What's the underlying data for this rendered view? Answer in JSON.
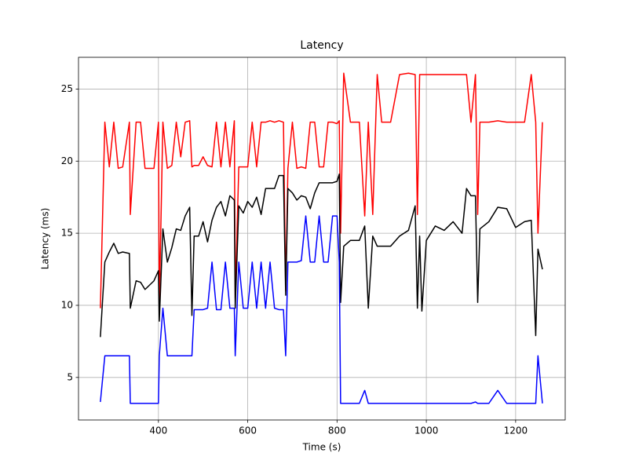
{
  "chart_data": {
    "type": "line",
    "title": "Latency",
    "x_label": "Time (s)",
    "y_label": "Latency (ms)",
    "x": [
      270,
      280,
      290,
      300,
      310,
      320,
      335,
      337,
      350,
      360,
      370,
      390,
      400,
      402,
      410,
      420,
      430,
      440,
      450,
      460,
      470,
      475,
      480,
      490,
      500,
      510,
      520,
      530,
      540,
      550,
      560,
      570,
      572,
      580,
      590,
      600,
      610,
      620,
      630,
      640,
      650,
      660,
      670,
      680,
      685,
      690,
      700,
      710,
      720,
      730,
      740,
      750,
      760,
      770,
      780,
      790,
      800,
      805,
      808,
      815,
      830,
      850,
      862,
      870,
      880,
      890,
      900,
      920,
      940,
      960,
      975,
      980,
      985,
      990,
      1000,
      1020,
      1040,
      1060,
      1080,
      1090,
      1100,
      1110,
      1115,
      1120,
      1140,
      1160,
      1180,
      1200,
      1220,
      1235,
      1245,
      1250,
      1260
    ],
    "series": [
      {
        "color": "#ff0000",
        "values": [
          9.8,
          22.7,
          19.6,
          22.7,
          19.5,
          19.6,
          22.7,
          16.3,
          22.7,
          22.7,
          19.5,
          19.5,
          22.7,
          10.0,
          22.7,
          19.5,
          19.7,
          22.7,
          20.3,
          22.7,
          22.8,
          19.6,
          19.7,
          19.7,
          20.3,
          19.7,
          19.6,
          22.7,
          19.6,
          22.7,
          19.6,
          22.8,
          10.5,
          19.6,
          19.6,
          19.6,
          22.7,
          19.6,
          22.7,
          22.7,
          22.8,
          22.7,
          22.8,
          22.7,
          11.0,
          19.5,
          22.7,
          19.5,
          19.6,
          19.5,
          22.7,
          22.7,
          19.6,
          19.6,
          22.7,
          22.7,
          22.6,
          22.8,
          15.0,
          26.1,
          22.7,
          22.7,
          16.2,
          22.7,
          16.3,
          26.0,
          22.7,
          22.7,
          26.0,
          26.1,
          26.0,
          16.3,
          26.0,
          26.0,
          26.0,
          26.0,
          26.0,
          26.0,
          26.0,
          26.0,
          22.7,
          26.0,
          16.3,
          22.7,
          22.7,
          22.8,
          22.7,
          22.7,
          22.7,
          26.0,
          22.7,
          15.0,
          22.7
        ]
      },
      {
        "color": "#000000",
        "values": [
          7.8,
          13.0,
          13.7,
          14.3,
          13.6,
          13.7,
          13.6,
          9.8,
          11.7,
          11.6,
          11.1,
          11.7,
          12.4,
          8.9,
          15.3,
          13.0,
          14.0,
          15.3,
          15.2,
          16.2,
          16.8,
          9.3,
          14.8,
          14.8,
          15.8,
          14.4,
          15.9,
          16.8,
          17.2,
          16.2,
          17.6,
          17.3,
          9.8,
          16.9,
          16.4,
          17.2,
          16.8,
          17.5,
          16.3,
          18.1,
          18.1,
          18.1,
          19.0,
          19.0,
          10.7,
          18.1,
          17.8,
          17.3,
          17.6,
          17.5,
          16.7,
          17.8,
          18.5,
          18.5,
          18.5,
          18.5,
          18.6,
          19.1,
          10.2,
          14.1,
          14.5,
          14.5,
          15.5,
          9.8,
          14.8,
          14.1,
          14.1,
          14.1,
          14.8,
          15.2,
          16.9,
          9.8,
          14.8,
          9.6,
          14.5,
          15.5,
          15.2,
          15.8,
          15.0,
          18.1,
          17.6,
          17.6,
          10.2,
          15.3,
          15.8,
          16.8,
          16.7,
          15.4,
          15.8,
          15.9,
          7.9,
          13.9,
          12.5
        ]
      },
      {
        "color": "#0000ff",
        "values": [
          3.3,
          6.5,
          6.5,
          6.5,
          6.5,
          6.5,
          6.5,
          3.2,
          3.2,
          3.2,
          3.2,
          3.2,
          3.2,
          6.5,
          9.8,
          6.5,
          6.5,
          6.5,
          6.5,
          6.5,
          6.5,
          6.5,
          9.7,
          9.7,
          9.7,
          9.8,
          13.0,
          9.7,
          9.7,
          13.0,
          9.8,
          9.8,
          6.5,
          13.0,
          9.8,
          9.8,
          13.0,
          9.8,
          13.0,
          9.8,
          13.0,
          9.8,
          9.7,
          9.7,
          6.5,
          13.0,
          13.0,
          13.0,
          13.1,
          16.2,
          13.0,
          13.0,
          16.2,
          13.0,
          13.0,
          16.2,
          16.2,
          13.0,
          3.2,
          3.2,
          3.2,
          3.2,
          4.1,
          3.2,
          3.2,
          3.2,
          3.2,
          3.2,
          3.2,
          3.2,
          3.2,
          3.2,
          3.2,
          3.2,
          3.2,
          3.2,
          3.2,
          3.2,
          3.2,
          3.2,
          3.2,
          3.3,
          3.2,
          3.2,
          3.2,
          4.1,
          3.2,
          3.2,
          3.2,
          3.2,
          3.2,
          6.5,
          3.2
        ]
      }
    ],
    "xlim": [
      221,
      1311
    ],
    "ylim": [
      2.05,
      27.2
    ],
    "xticks": [
      400,
      600,
      800,
      1000,
      1200
    ],
    "yticks": [
      5,
      10,
      15,
      20,
      25
    ],
    "grid": true
  }
}
